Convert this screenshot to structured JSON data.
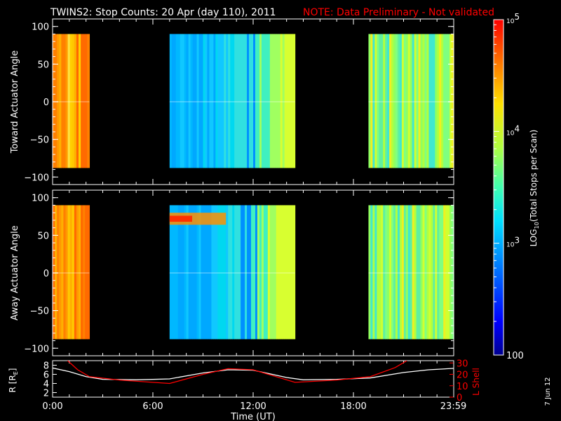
{
  "chart_data": [
    {
      "type": "heatmap",
      "panel": "top",
      "title": "TWINS2: Stop Counts: 20 Apr (day 110), 2011",
      "note": "NOTE: Data Preliminary - Not validated",
      "ylabel": "Toward Actuator Angle",
      "ylim": [
        -110,
        110
      ],
      "yticks": [
        100,
        50,
        0,
        -50,
        -100
      ],
      "xlim": [
        0,
        24
      ],
      "value_range_y": [
        -88,
        90
      ],
      "data_blocks": [
        {
          "x_start": 0.0,
          "x_end": 2.2,
          "level": "high"
        },
        {
          "x_start": 7.0,
          "x_end": 14.5,
          "level": "low-medium"
        },
        {
          "x_start": 18.9,
          "x_end": 24.0,
          "level": "medium"
        }
      ]
    },
    {
      "type": "heatmap",
      "panel": "middle",
      "ylabel": "Away Actuator Angle",
      "ylim": [
        -110,
        110
      ],
      "yticks": [
        100,
        50,
        0,
        -50,
        -100
      ],
      "xlim": [
        0,
        24
      ],
      "value_range_y": [
        -88,
        90
      ],
      "data_blocks": [
        {
          "x_start": 0.0,
          "x_end": 2.2,
          "level": "high"
        },
        {
          "x_start": 7.0,
          "x_end": 14.5,
          "level": "low-medium",
          "hot_band_y": 72
        },
        {
          "x_start": 18.9,
          "x_end": 24.0,
          "level": "medium"
        }
      ]
    },
    {
      "type": "line",
      "panel": "bottom",
      "xlabel": "Time (UT)",
      "xticks": [
        "0:00",
        "6:00",
        "12:00",
        "18:00",
        "23:59"
      ],
      "xtick_values": [
        0,
        6,
        12,
        18,
        23.98
      ],
      "ylabel_left": "R [RE]",
      "ylabel_left_main": "R [R",
      "ylabel_left_sub": "E",
      "ylabel_left_end": "]",
      "yticks_left": [
        8,
        6,
        4,
        2
      ],
      "ylim_left": [
        1,
        9
      ],
      "ylabel_right": "L Shell",
      "yticks_right": [
        30,
        20,
        10,
        0
      ],
      "ylim_right": [
        0,
        32
      ],
      "series": [
        {
          "color": "#ffffff",
          "axis": "left",
          "x": [
            0,
            1,
            2,
            3,
            5,
            7,
            9,
            10.5,
            12,
            14,
            15,
            17,
            19,
            21,
            22.5,
            23.98
          ],
          "y": [
            7.4,
            6.6,
            5.5,
            4.9,
            4.8,
            5.0,
            6.3,
            7.0,
            6.9,
            5.3,
            4.8,
            4.9,
            5.2,
            6.4,
            7.0,
            7.3
          ]
        },
        {
          "color": "#ff0000",
          "axis": "right",
          "x": [
            0.9,
            1.5,
            2.2,
            4,
            7,
            9,
            10.5,
            12,
            14.5,
            17,
            19,
            20.5,
            21.2
          ],
          "y": [
            32,
            24,
            18,
            15,
            12,
            20,
            25,
            24,
            13,
            15,
            18,
            26,
            32
          ]
        }
      ]
    }
  ],
  "colorbar": {
    "label": "LOG10(Total Stops per Scan)",
    "label_main": "LOG",
    "label_sub": "10",
    "label_rest": "(Total Stops per Scan)",
    "ticks": [
      {
        "base": "10",
        "exp": "5",
        "value": 100000
      },
      {
        "base": "10",
        "exp": "4",
        "value": 10000
      },
      {
        "base": "10",
        "exp": "3",
        "value": 1000
      },
      {
        "base": "100",
        "exp": "",
        "value": 100
      }
    ],
    "range": [
      100,
      100000
    ],
    "colors": [
      "#000090",
      "#0000ff",
      "#0070ff",
      "#00e0ff",
      "#40ffb0",
      "#b0ff40",
      "#ffe000",
      "#ff7000",
      "#ff0000"
    ]
  },
  "date_stamp": "7 Jun 12",
  "colors": {
    "note": "#ff0000",
    "axis": "#ffffff"
  }
}
